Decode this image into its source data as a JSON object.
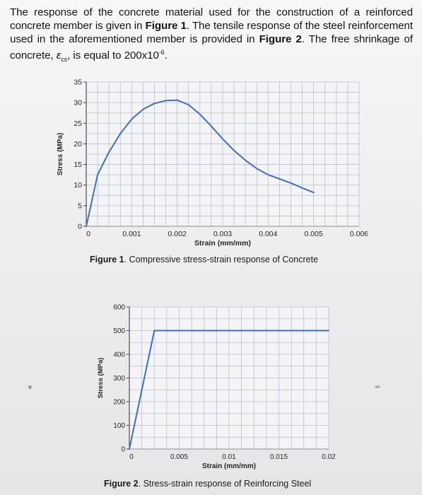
{
  "intro": {
    "line1a": "The response of the concrete material used for the construction of a reinforced concrete member is given in ",
    "fig1_ref": "Figure 1",
    "line1b": ". The tensile response of the steel reinforcement used in the aforementioned member is provided in ",
    "fig2_ref": "Figure 2",
    "line2a": ". The free shrinkage of concrete, ",
    "symbol": "ε",
    "symbol_sub": "cs",
    "line2b": ", is equal to 200x10",
    "exponent": "-6",
    "line2c": "."
  },
  "figure1": {
    "caption_prefix": "Figure 1",
    "caption_text": ". Compressive stress-strain response of Concrete"
  },
  "figure2": {
    "caption_prefix": "Figure 2",
    "caption_text": ". Stress-strain response of Reinforcing Steel"
  },
  "chart_data": [
    {
      "type": "line",
      "xlabel": "Strain (mm/mm)",
      "ylabel": "Stress (MPa)",
      "xlim": [
        0,
        0.006
      ],
      "ylim": [
        0,
        35
      ],
      "x_ticks": [
        "0",
        "0.001",
        "0.002",
        "0.003",
        "0.004",
        "0.005",
        "0.006"
      ],
      "y_ticks": [
        "0",
        "5",
        "10",
        "15",
        "20",
        "25",
        "30",
        "35"
      ],
      "grid": true,
      "line_color": "#3f6fcb",
      "series": [
        {
          "x": [
            0,
            0.00025,
            0.0005,
            0.00075,
            0.001,
            0.00125,
            0.0015,
            0.00175,
            0.002,
            0.00225,
            0.0025,
            0.00275,
            0.003,
            0.00325,
            0.0035,
            0.00375,
            0.004,
            0.00425,
            0.0045,
            0.00475,
            0.005
          ],
          "y": [
            0,
            12.5,
            18,
            22.5,
            26,
            28.4,
            29.8,
            30.5,
            30.6,
            29.5,
            27.2,
            24.3,
            21.2,
            18.4,
            16,
            14,
            12.5,
            11.5,
            10.5,
            9.3,
            8.2
          ]
        }
      ]
    },
    {
      "type": "line",
      "xlabel": "Strain (mm/mm)",
      "ylabel": "Stress (MPa)",
      "xlim": [
        0,
        0.02
      ],
      "ylim": [
        0,
        600
      ],
      "x_ticks": [
        "0",
        "0.005",
        "0.01",
        "0.015",
        "0.02"
      ],
      "y_ticks": [
        "0",
        "100",
        "200",
        "300",
        "400",
        "500",
        "600"
      ],
      "grid": true,
      "line_color": "#3f6fcb",
      "series": [
        {
          "x": [
            0,
            0.0025,
            0.02
          ],
          "y": [
            0,
            500,
            500
          ]
        }
      ]
    }
  ]
}
